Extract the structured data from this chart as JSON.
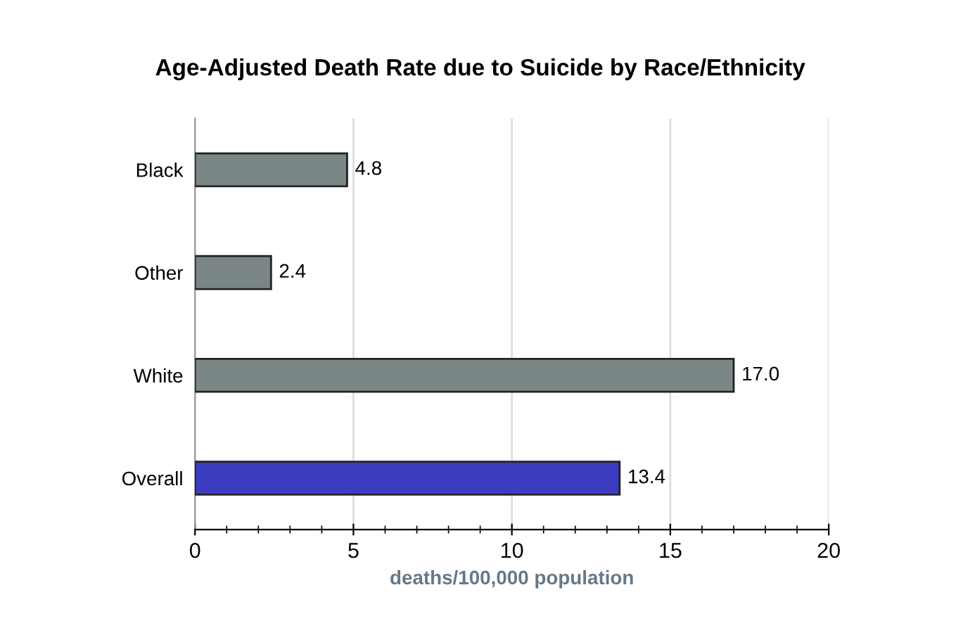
{
  "chart_data": {
    "type": "bar",
    "orientation": "horizontal",
    "title": "Age-Adjusted Death Rate due to Suicide by Race/Ethnicity",
    "xlabel": "deaths/100,000 population",
    "categories": [
      "Black",
      "Other",
      "White",
      "Overall"
    ],
    "values": [
      4.8,
      2.4,
      17.0,
      13.4
    ],
    "colors": [
      "#7b8787",
      "#7b8787",
      "#7b8787",
      "#3c3cc0"
    ],
    "value_labels": [
      "4.8",
      "2.4",
      "17.0",
      "13.4"
    ],
    "xlim": [
      0,
      20
    ],
    "xticks": [
      0,
      5,
      10,
      15,
      20
    ],
    "grid": "x"
  }
}
